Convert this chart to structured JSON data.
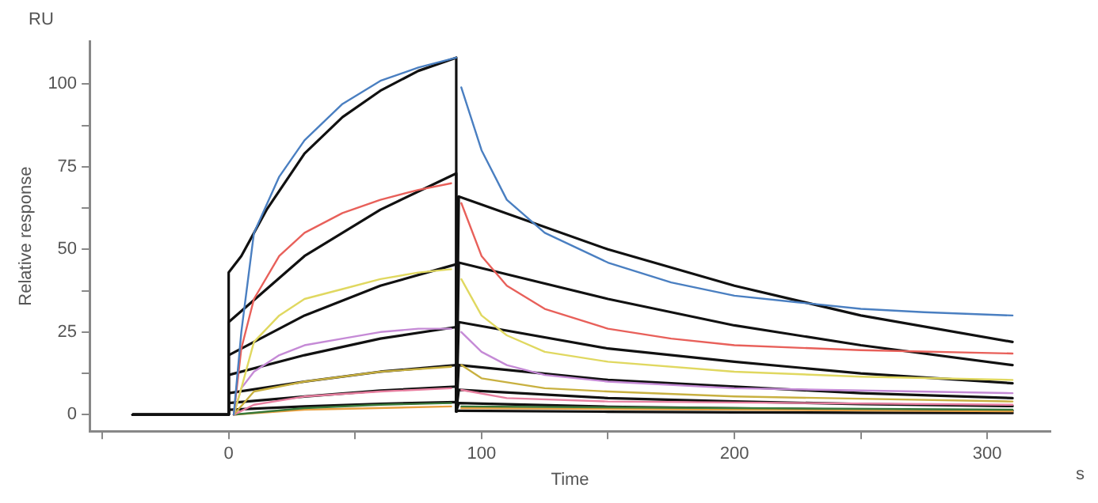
{
  "chart_data": {
    "type": "line",
    "xlabel": "Time",
    "ylabel": "Relative response",
    "annotations": [
      "RU",
      "s"
    ],
    "xlim": [
      -55,
      325
    ],
    "xticks": [
      {
        "value": -50,
        "label": null
      },
      0,
      {
        "value": 50,
        "label": null
      },
      100,
      {
        "value": 150,
        "label": null
      },
      200,
      {
        "value": 250,
        "label": null
      },
      300
    ],
    "ylim": [
      -5,
      113
    ],
    "yticks": [
      0,
      {
        "value": 12.5,
        "label": null
      },
      25,
      {
        "value": 37.5,
        "label": null
      },
      50,
      {
        "value": 62.5,
        "label": null
      },
      75,
      {
        "value": 87.5,
        "label": null
      },
      100
    ],
    "grid": false,
    "legend": false,
    "marker": "none",
    "line_style": "solid",
    "series": [
      {
        "color": "#4a7fc1",
        "x": [
          2,
          5,
          10,
          20,
          30,
          45,
          60,
          75,
          90,
          91,
          92,
          100,
          110,
          125,
          150,
          175,
          200,
          225,
          250,
          275,
          310
        ],
        "values": [
          0,
          25,
          55,
          72,
          83,
          94,
          101,
          105,
          108,
          null,
          99,
          80,
          65,
          55,
          46,
          40,
          36,
          34,
          32,
          31,
          30
        ]
      },
      {
        "color": "#e8605a",
        "x": [
          2,
          5,
          10,
          20,
          30,
          45,
          60,
          75,
          88,
          90,
          92,
          100,
          110,
          125,
          150,
          175,
          200,
          250,
          310
        ],
        "values": [
          0,
          20,
          35,
          48,
          55,
          61,
          65,
          68,
          70,
          null,
          64,
          48,
          39,
          32,
          26,
          23,
          21,
          19.5,
          18.5
        ]
      },
      {
        "color": "#e0d860",
        "x": [
          2,
          5,
          10,
          20,
          30,
          45,
          60,
          75,
          88,
          90,
          92,
          100,
          110,
          125,
          150,
          200,
          250,
          310
        ],
        "values": [
          0,
          8,
          22,
          30,
          35,
          38,
          41,
          43,
          44,
          null,
          41,
          30,
          24,
          19,
          16,
          13,
          11.5,
          10.5
        ]
      },
      {
        "color": "#c58ad6",
        "x": [
          2,
          5,
          10,
          20,
          30,
          45,
          60,
          75,
          88,
          90,
          92,
          100,
          110,
          125,
          150,
          200,
          310
        ],
        "values": [
          0,
          8,
          13,
          18,
          21,
          23,
          25,
          26,
          26,
          null,
          25,
          19,
          15,
          12,
          10,
          8,
          6.5
        ]
      },
      {
        "color": "#c8b040",
        "x": [
          2,
          10,
          30,
          60,
          88,
          90,
          92,
          100,
          125,
          150,
          200,
          310
        ],
        "values": [
          0,
          7,
          10,
          13,
          14.5,
          null,
          15,
          11,
          8,
          7,
          5.5,
          4
        ]
      },
      {
        "color": "#e87fa0",
        "x": [
          2,
          10,
          30,
          60,
          88,
          90,
          92,
          110,
          150,
          310
        ],
        "values": [
          0,
          3,
          5.5,
          7,
          8,
          null,
          7.5,
          5,
          4,
          3
        ]
      },
      {
        "color": "#3a7a3a",
        "x": [
          2,
          30,
          60,
          88,
          90,
          92,
          310
        ],
        "values": [
          0,
          2,
          3,
          3.5,
          null,
          2.5,
          1.5
        ]
      },
      {
        "color": "#e8a040",
        "x": [
          2,
          30,
          88,
          90,
          92,
          310
        ],
        "values": [
          0,
          1.5,
          2.5,
          null,
          2,
          1
        ]
      },
      {
        "color": "#111111",
        "x": [
          -38,
          0,
          0,
          5,
          15,
          30,
          45,
          60,
          75,
          90,
          90,
          91,
          150,
          200,
          250,
          310
        ],
        "values": [
          0,
          0,
          43,
          48,
          62,
          79,
          90,
          98,
          104,
          108,
          1,
          66,
          50,
          39,
          30,
          22
        ]
      },
      {
        "color": "#111111",
        "x": [
          -38,
          0,
          0,
          30,
          60,
          90,
          90,
          91,
          150,
          200,
          250,
          310
        ],
        "values": [
          0,
          0,
          28,
          48,
          62,
          73,
          1,
          46,
          35,
          27,
          21,
          15
        ]
      },
      {
        "color": "#111111",
        "x": [
          -38,
          0,
          0,
          30,
          60,
          90,
          90,
          91,
          150,
          200,
          250,
          310
        ],
        "values": [
          0,
          0,
          18,
          30,
          39,
          45.5,
          1,
          28,
          20,
          16,
          12.5,
          9.5
        ]
      },
      {
        "color": "#111111",
        "x": [
          -38,
          0,
          0,
          30,
          60,
          90,
          90,
          91,
          150,
          200,
          250,
          310
        ],
        "values": [
          0,
          0,
          12,
          18,
          23,
          26.5,
          1,
          15,
          10.5,
          8.5,
          6.5,
          5
        ]
      },
      {
        "color": "#111111",
        "x": [
          -38,
          0,
          0,
          30,
          60,
          90,
          90,
          91,
          150,
          200,
          250,
          310
        ],
        "values": [
          0,
          0,
          6.5,
          10,
          13,
          15,
          1,
          7.5,
          5,
          4,
          3.2,
          2.6
        ]
      },
      {
        "color": "#111111",
        "x": [
          -38,
          0,
          0,
          30,
          60,
          90,
          90,
          91,
          150,
          200,
          250,
          310
        ],
        "values": [
          0,
          0,
          3.5,
          5.5,
          7.3,
          8.5,
          1,
          3.5,
          2.4,
          1.9,
          1.5,
          1.2
        ]
      },
      {
        "color": "#111111",
        "x": [
          -38,
          0,
          0,
          30,
          60,
          90,
          90,
          91,
          150,
          200,
          250,
          310
        ],
        "values": [
          0,
          0,
          1.5,
          2.5,
          3.3,
          3.8,
          1,
          1.2,
          0.9,
          0.7,
          0.6,
          0.5
        ]
      }
    ]
  }
}
